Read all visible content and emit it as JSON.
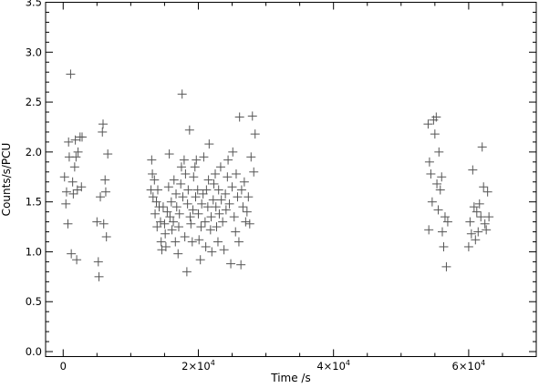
{
  "chart_data": {
    "type": "scatter",
    "xlabel": "Time /s",
    "ylabel": "Counts/s/PCU",
    "xlim": [
      -2600,
      70000
    ],
    "ylim": [
      -0.05,
      3.5
    ],
    "grid": false,
    "marker": "+",
    "marker_color": "#555555",
    "x_ticks": [
      {
        "value": 0,
        "mant": "0",
        "exp": ""
      },
      {
        "value": 20000,
        "mant": "2×10",
        "exp": "4"
      },
      {
        "value": 40000,
        "mant": "4×10",
        "exp": "4"
      },
      {
        "value": 60000,
        "mant": "6×10",
        "exp": "4"
      }
    ],
    "y_ticks": [
      "0.0",
      "0.5",
      "1.0",
      "1.5",
      "2.0",
      "2.5",
      "3.0",
      "3.5"
    ],
    "points": [
      {
        "x": 200,
        "y": 1.75
      },
      {
        "x": 400,
        "y": 1.48
      },
      {
        "x": 500,
        "y": 1.6
      },
      {
        "x": 700,
        "y": 1.28
      },
      {
        "x": 800,
        "y": 2.1
      },
      {
        "x": 900,
        "y": 1.95
      },
      {
        "x": 1100,
        "y": 2.78
      },
      {
        "x": 1200,
        "y": 0.98
      },
      {
        "x": 1400,
        "y": 1.7
      },
      {
        "x": 1500,
        "y": 1.58
      },
      {
        "x": 1700,
        "y": 1.85
      },
      {
        "x": 1800,
        "y": 2.12
      },
      {
        "x": 1900,
        "y": 1.95
      },
      {
        "x": 2000,
        "y": 0.92
      },
      {
        "x": 2100,
        "y": 1.62
      },
      {
        "x": 2200,
        "y": 2.0
      },
      {
        "x": 2500,
        "y": 2.15
      },
      {
        "x": 2700,
        "y": 1.65
      },
      {
        "x": 2800,
        "y": 2.15
      },
      {
        "x": 5000,
        "y": 1.3
      },
      {
        "x": 5200,
        "y": 0.9
      },
      {
        "x": 5300,
        "y": 0.75
      },
      {
        "x": 5500,
        "y": 1.55
      },
      {
        "x": 5800,
        "y": 2.2
      },
      {
        "x": 5900,
        "y": 2.28
      },
      {
        "x": 6000,
        "y": 1.28
      },
      {
        "x": 6200,
        "y": 1.72
      },
      {
        "x": 6300,
        "y": 1.6
      },
      {
        "x": 6400,
        "y": 1.15
      },
      {
        "x": 6600,
        "y": 1.98
      },
      {
        "x": 13000,
        "y": 1.62
      },
      {
        "x": 13100,
        "y": 1.92
      },
      {
        "x": 13200,
        "y": 1.78
      },
      {
        "x": 13300,
        "y": 1.55
      },
      {
        "x": 13500,
        "y": 1.72
      },
      {
        "x": 13600,
        "y": 1.38
      },
      {
        "x": 13800,
        "y": 1.5
      },
      {
        "x": 13900,
        "y": 1.25
      },
      {
        "x": 14000,
        "y": 1.62
      },
      {
        "x": 14200,
        "y": 1.45
      },
      {
        "x": 14400,
        "y": 1.3
      },
      {
        "x": 14500,
        "y": 1.1
      },
      {
        "x": 14600,
        "y": 1.02
      },
      {
        "x": 14800,
        "y": 1.45
      },
      {
        "x": 15000,
        "y": 1.28
      },
      {
        "x": 15100,
        "y": 1.18
      },
      {
        "x": 15200,
        "y": 1.05
      },
      {
        "x": 15400,
        "y": 1.4
      },
      {
        "x": 15600,
        "y": 1.65
      },
      {
        "x": 15700,
        "y": 1.98
      },
      {
        "x": 15800,
        "y": 1.35
      },
      {
        "x": 16000,
        "y": 1.5
      },
      {
        "x": 16100,
        "y": 1.22
      },
      {
        "x": 16300,
        "y": 1.3
      },
      {
        "x": 16400,
        "y": 1.72
      },
      {
        "x": 16600,
        "y": 1.1
      },
      {
        "x": 16700,
        "y": 1.58
      },
      {
        "x": 16800,
        "y": 1.45
      },
      {
        "x": 17000,
        "y": 0.98
      },
      {
        "x": 17100,
        "y": 1.25
      },
      {
        "x": 17200,
        "y": 1.38
      },
      {
        "x": 17400,
        "y": 1.68
      },
      {
        "x": 17500,
        "y": 1.85
      },
      {
        "x": 17600,
        "y": 2.58
      },
      {
        "x": 17700,
        "y": 1.55
      },
      {
        "x": 17900,
        "y": 1.92
      },
      {
        "x": 18000,
        "y": 1.15
      },
      {
        "x": 18100,
        "y": 1.78
      },
      {
        "x": 18300,
        "y": 0.8
      },
      {
        "x": 18400,
        "y": 1.48
      },
      {
        "x": 18500,
        "y": 1.62
      },
      {
        "x": 18700,
        "y": 2.22
      },
      {
        "x": 18800,
        "y": 1.35
      },
      {
        "x": 18900,
        "y": 1.28
      },
      {
        "x": 19100,
        "y": 1.1
      },
      {
        "x": 19200,
        "y": 1.42
      },
      {
        "x": 19300,
        "y": 1.75
      },
      {
        "x": 19500,
        "y": 1.85
      },
      {
        "x": 19600,
        "y": 1.55
      },
      {
        "x": 19700,
        "y": 1.92
      },
      {
        "x": 19900,
        "y": 1.62
      },
      {
        "x": 20000,
        "y": 1.38
      },
      {
        "x": 20100,
        "y": 1.12
      },
      {
        "x": 20300,
        "y": 0.92
      },
      {
        "x": 20400,
        "y": 1.25
      },
      {
        "x": 20500,
        "y": 1.48
      },
      {
        "x": 20700,
        "y": 1.58
      },
      {
        "x": 20800,
        "y": 1.95
      },
      {
        "x": 21000,
        "y": 1.3
      },
      {
        "x": 21100,
        "y": 1.05
      },
      {
        "x": 21200,
        "y": 1.62
      },
      {
        "x": 21400,
        "y": 1.45
      },
      {
        "x": 21500,
        "y": 1.72
      },
      {
        "x": 21600,
        "y": 2.08
      },
      {
        "x": 21800,
        "y": 1.22
      },
      {
        "x": 21900,
        "y": 1.35
      },
      {
        "x": 22000,
        "y": 1.0
      },
      {
        "x": 22200,
        "y": 1.52
      },
      {
        "x": 22300,
        "y": 1.68
      },
      {
        "x": 22500,
        "y": 1.78
      },
      {
        "x": 22600,
        "y": 1.45
      },
      {
        "x": 22700,
        "y": 1.25
      },
      {
        "x": 22900,
        "y": 1.1
      },
      {
        "x": 23000,
        "y": 1.62
      },
      {
        "x": 23100,
        "y": 1.38
      },
      {
        "x": 23300,
        "y": 1.85
      },
      {
        "x": 23400,
        "y": 1.52
      },
      {
        "x": 23600,
        "y": 1.3
      },
      {
        "x": 23800,
        "y": 1.02
      },
      {
        "x": 24000,
        "y": 1.58
      },
      {
        "x": 24100,
        "y": 1.42
      },
      {
        "x": 24300,
        "y": 1.75
      },
      {
        "x": 24400,
        "y": 1.92
      },
      {
        "x": 24600,
        "y": 1.48
      },
      {
        "x": 24800,
        "y": 0.88
      },
      {
        "x": 25000,
        "y": 1.65
      },
      {
        "x": 25100,
        "y": 2.0
      },
      {
        "x": 25300,
        "y": 1.35
      },
      {
        "x": 25500,
        "y": 1.2
      },
      {
        "x": 25600,
        "y": 1.78
      },
      {
        "x": 25800,
        "y": 1.55
      },
      {
        "x": 26000,
        "y": 1.1
      },
      {
        "x": 26100,
        "y": 2.35
      },
      {
        "x": 26300,
        "y": 0.87
      },
      {
        "x": 26400,
        "y": 1.62
      },
      {
        "x": 26600,
        "y": 1.45
      },
      {
        "x": 26800,
        "y": 1.7
      },
      {
        "x": 27000,
        "y": 1.3
      },
      {
        "x": 27200,
        "y": 1.4
      },
      {
        "x": 27400,
        "y": 1.55
      },
      {
        "x": 27600,
        "y": 1.28
      },
      {
        "x": 27800,
        "y": 1.95
      },
      {
        "x": 28000,
        "y": 2.36
      },
      {
        "x": 28200,
        "y": 1.8
      },
      {
        "x": 28400,
        "y": 2.18
      },
      {
        "x": 54000,
        "y": 2.28
      },
      {
        "x": 54100,
        "y": 1.22
      },
      {
        "x": 54200,
        "y": 1.9
      },
      {
        "x": 54400,
        "y": 1.78
      },
      {
        "x": 54600,
        "y": 1.5
      },
      {
        "x": 54800,
        "y": 2.32
      },
      {
        "x": 55000,
        "y": 2.18
      },
      {
        "x": 55200,
        "y": 2.35
      },
      {
        "x": 55300,
        "y": 1.68
      },
      {
        "x": 55500,
        "y": 1.42
      },
      {
        "x": 55600,
        "y": 2.0
      },
      {
        "x": 55800,
        "y": 1.62
      },
      {
        "x": 56000,
        "y": 1.75
      },
      {
        "x": 56100,
        "y": 1.2
      },
      {
        "x": 56300,
        "y": 1.05
      },
      {
        "x": 56500,
        "y": 1.35
      },
      {
        "x": 56700,
        "y": 0.85
      },
      {
        "x": 56900,
        "y": 1.3
      },
      {
        "x": 60000,
        "y": 1.05
      },
      {
        "x": 60200,
        "y": 1.3
      },
      {
        "x": 60400,
        "y": 1.18
      },
      {
        "x": 60600,
        "y": 1.82
      },
      {
        "x": 60800,
        "y": 1.45
      },
      {
        "x": 61000,
        "y": 1.12
      },
      {
        "x": 61200,
        "y": 1.4
      },
      {
        "x": 61400,
        "y": 1.2
      },
      {
        "x": 61600,
        "y": 1.48
      },
      {
        "x": 61800,
        "y": 1.35
      },
      {
        "x": 62000,
        "y": 2.05
      },
      {
        "x": 62200,
        "y": 1.65
      },
      {
        "x": 62400,
        "y": 1.28
      },
      {
        "x": 62600,
        "y": 1.22
      },
      {
        "x": 62800,
        "y": 1.6
      },
      {
        "x": 63000,
        "y": 1.35
      }
    ]
  }
}
